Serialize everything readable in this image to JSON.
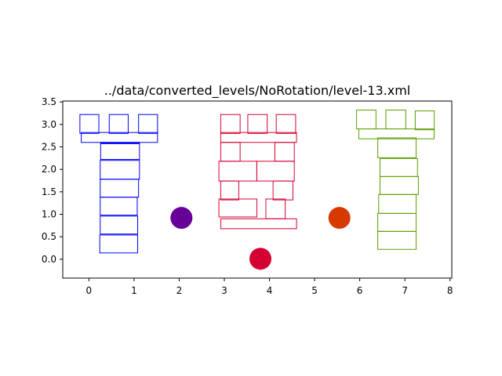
{
  "chart_data": {
    "type": "scatter",
    "title": "../data/converted_levels/NoRotation/level-13.xml",
    "xlim": [
      -0.58,
      8.04
    ],
    "ylim": [
      -0.42,
      3.52
    ],
    "x_ticks": [
      0,
      1,
      2,
      3,
      4,
      5,
      6,
      7,
      8
    ],
    "y_ticks": [
      0.0,
      0.5,
      1.0,
      1.5,
      2.0,
      2.5,
      3.0,
      3.5
    ],
    "x_tick_labels": [
      "0",
      "1",
      "2",
      "3",
      "4",
      "5",
      "6",
      "7",
      "8"
    ],
    "y_tick_labels": [
      "0.0",
      "0.5",
      "1.0",
      "1.5",
      "2.0",
      "2.5",
      "3.0",
      "3.5"
    ],
    "grid": false,
    "structures": [
      {
        "color": "#0000ff",
        "blocks": [
          [
            0.24,
            1.08,
            0.14,
            0.54
          ],
          [
            0.25,
            1.08,
            0.56,
            0.96
          ],
          [
            0.25,
            1.07,
            0.98,
            1.38
          ],
          [
            0.25,
            1.1,
            1.38,
            1.78
          ],
          [
            0.25,
            1.12,
            1.78,
            2.2
          ],
          [
            0.26,
            1.12,
            2.22,
            2.6
          ],
          [
            0.26,
            1.12,
            2.6,
            2.58
          ],
          [
            -0.17,
            1.52,
            2.6,
            2.82
          ],
          [
            -0.2,
            0.22,
            2.8,
            3.22
          ],
          [
            0.45,
            0.87,
            2.8,
            3.22
          ],
          [
            1.1,
            1.52,
            2.8,
            3.22
          ]
        ]
      },
      {
        "color": "#d50032",
        "blocks": [
          [
            2.92,
            4.6,
            0.68,
            0.9
          ],
          [
            2.88,
            3.72,
            0.94,
            1.34
          ],
          [
            3.92,
            4.35,
            0.9,
            1.34
          ],
          [
            2.92,
            3.32,
            1.32,
            1.74
          ],
          [
            4.08,
            4.52,
            1.32,
            1.74
          ],
          [
            2.88,
            3.72,
            1.74,
            2.18
          ],
          [
            3.72,
            4.55,
            1.74,
            2.18
          ],
          [
            2.92,
            3.35,
            2.18,
            2.6
          ],
          [
            4.12,
            4.55,
            2.18,
            2.6
          ],
          [
            2.92,
            4.6,
            2.6,
            2.82
          ],
          [
            2.92,
            3.35,
            2.8,
            3.22
          ],
          [
            3.52,
            3.95,
            2.8,
            3.22
          ],
          [
            4.15,
            4.58,
            2.8,
            3.22
          ]
        ]
      },
      {
        "color": "#5a9e00",
        "blocks": [
          [
            6.4,
            7.25,
            0.22,
            0.62
          ],
          [
            6.4,
            7.25,
            0.62,
            1.02
          ],
          [
            6.42,
            7.25,
            1.02,
            1.44
          ],
          [
            6.45,
            7.3,
            1.44,
            1.84
          ],
          [
            6.45,
            7.28,
            1.84,
            2.24
          ],
          [
            6.4,
            7.25,
            2.26,
            2.7
          ],
          [
            5.98,
            7.65,
            2.68,
            2.9
          ],
          [
            5.93,
            6.36,
            2.9,
            3.32
          ],
          [
            6.58,
            7.02,
            2.9,
            3.32
          ],
          [
            7.23,
            7.65,
            2.88,
            3.3
          ]
        ]
      }
    ],
    "points": [
      {
        "x": 2.05,
        "y": 0.92,
        "color": "#660099"
      },
      {
        "x": 3.8,
        "y": 0.01,
        "color": "#d50032"
      },
      {
        "x": 5.55,
        "y": 0.92,
        "color": "#d63a00"
      }
    ]
  }
}
